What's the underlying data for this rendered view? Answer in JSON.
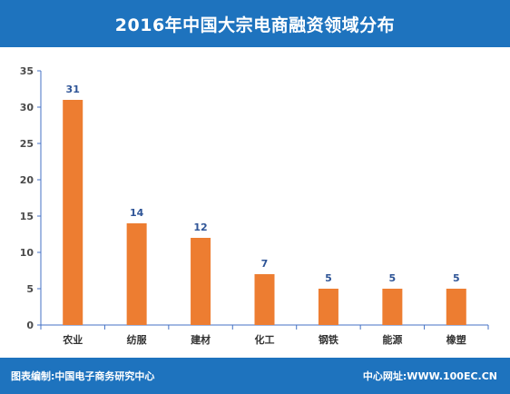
{
  "header": {
    "title": "2016年中国大宗电商融资领域分布"
  },
  "footer": {
    "left_text": "图表编制:中国电子商务研究中心",
    "right_text": "中心网址:WWW.100EC.CN"
  },
  "colors": {
    "header_bg": "#1e73be",
    "footer_bg": "#1e73be",
    "bar": "#ed7d31",
    "axis": "#4472c4",
    "data_label": "#2f5597"
  },
  "chart_data": {
    "type": "bar",
    "title": "2016年中国大宗电商融资领域分布",
    "xlabel": "",
    "ylabel": "",
    "categories": [
      "农业",
      "纺服",
      "建材",
      "化工",
      "钢铁",
      "能源",
      "橡塑"
    ],
    "values": [
      31,
      14,
      12,
      7,
      5,
      5,
      5
    ],
    "data_labels": [
      "31",
      "14",
      "12",
      "7",
      "5",
      "5",
      "5"
    ],
    "ylim": [
      0,
      35
    ],
    "yticks": [
      "0",
      "5",
      "10",
      "15",
      "20",
      "25",
      "30",
      "35"
    ],
    "grid": false,
    "legend": "none"
  }
}
